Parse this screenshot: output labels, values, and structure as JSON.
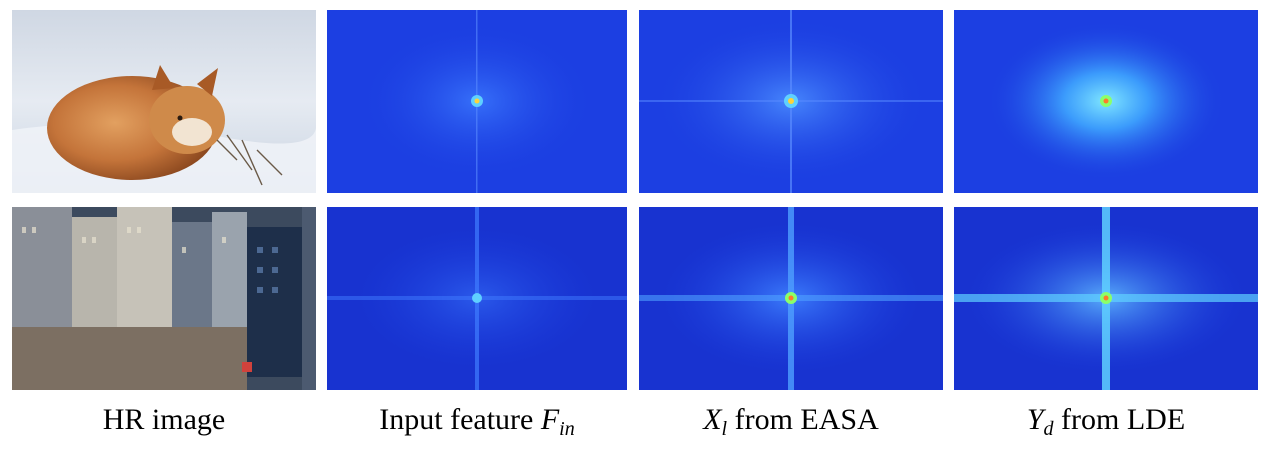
{
  "figure": {
    "rows": [
      {
        "photo_name": "fox",
        "panels": [
          "hr-image",
          "input-feature-spectrum",
          "easa-spectrum",
          "lde-spectrum"
        ]
      },
      {
        "photo_name": "city",
        "panels": [
          "hr-image",
          "input-feature-spectrum",
          "easa-spectrum",
          "lde-spectrum"
        ]
      }
    ],
    "captions": {
      "col1": "HR image",
      "col2_prefix": "Input feature ",
      "col2_math": "F",
      "col2_sub": "in",
      "col3_math": "X",
      "col3_sub": "l",
      "col3_suffix": " from EASA",
      "col4_math": "Y",
      "col4_sub": "d",
      "col4_suffix": " from LDE"
    }
  },
  "colors": {
    "spectrum_base": "#1a3de0",
    "spectrum_glow": "#5fd0ff",
    "spectrum_peak": "#ffd23a",
    "snow": "#dfe6f0",
    "fox_fur": "#c87a3a",
    "sky_blue": "#3f6fb0"
  }
}
